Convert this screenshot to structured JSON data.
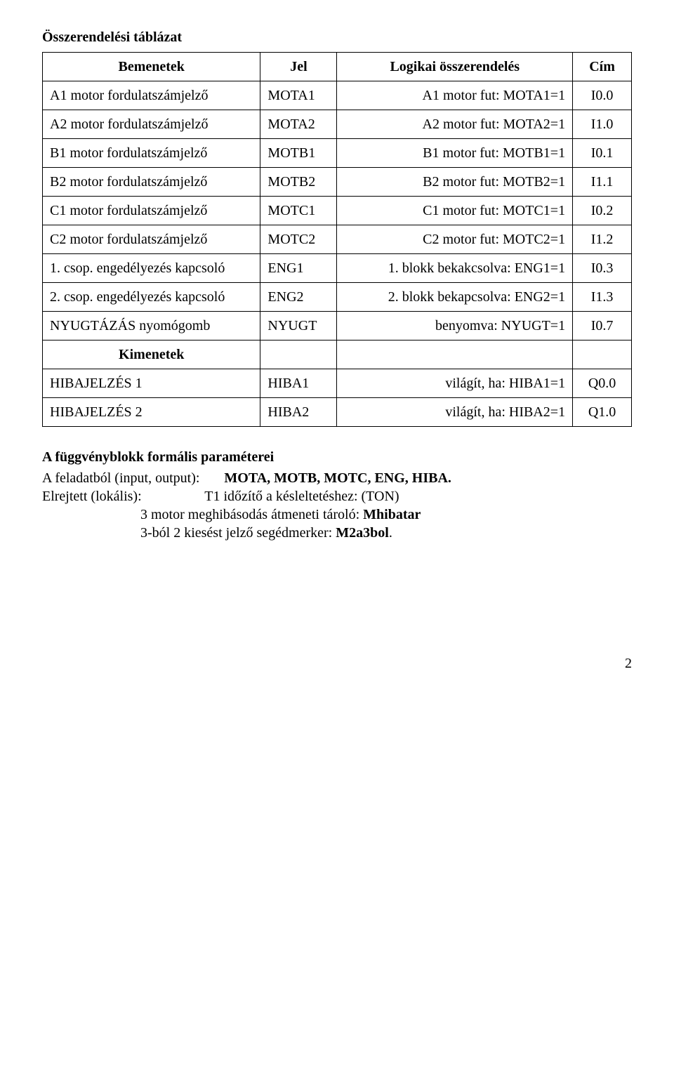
{
  "title": "Összerendelési táblázat",
  "table": {
    "headers": {
      "col1": "Bemenetek",
      "col2": "Jel",
      "col3": "Logikai összerendelés",
      "col4": "Cím"
    },
    "rows": [
      {
        "bemenet": "A1 motor fordulatszámjelző",
        "jel": "MOTA1",
        "logikai": "A1 motor fut:  MOTA1=1",
        "cim": "I0.0"
      },
      {
        "bemenet": "A2 motor fordulatszámjelző",
        "jel": "MOTA2",
        "logikai": "A2 motor fut:  MOTA2=1",
        "cim": "I1.0"
      },
      {
        "bemenet": "B1 motor fordulatszámjelző",
        "jel": "MOTB1",
        "logikai": "B1 motor fut:  MOTB1=1",
        "cim": "I0.1"
      },
      {
        "bemenet": "B2 motor fordulatszámjelző",
        "jel": "MOTB2",
        "logikai": "B2 motor fut:  MOTB2=1",
        "cim": "I1.1"
      },
      {
        "bemenet": "C1 motor fordulatszámjelző",
        "jel": "MOTC1",
        "logikai": "C1 motor fut:  MOTC1=1",
        "cim": "I0.2"
      },
      {
        "bemenet": "C2 motor fordulatszámjelző",
        "jel": "MOTC2",
        "logikai": "C2 motor fut:  MOTC2=1",
        "cim": "I1.2"
      },
      {
        "bemenet": "1. csop. engedélyezés kapcsoló",
        "jel": "ENG1",
        "logikai": "1. blokk bekakcsolva:  ENG1=1",
        "cim": "I0.3"
      },
      {
        "bemenet": "2. csop. engedélyezés kapcsoló",
        "jel": "ENG2",
        "logikai": "2. blokk bekapcsolva:  ENG2=1",
        "cim": "I1.3"
      },
      {
        "bemenet": "NYUGTÁZÁS nyomógomb",
        "jel": "NYUGT",
        "logikai": "benyomva:  NYUGT=1",
        "cim": "I0.7"
      }
    ],
    "kimenetek_header": "Kimenetek",
    "output_rows": [
      {
        "bemenet": "HIBAJELZÉS 1",
        "jel": "HIBA1",
        "logikai": "világít, ha:  HIBA1=1",
        "cim": "Q0.0"
      },
      {
        "bemenet": "HIBAJELZÉS 2",
        "jel": "HIBA2",
        "logikai": "világít, ha:  HIBA2=1",
        "cim": "Q1.0"
      }
    ]
  },
  "params": {
    "title": "A függvényblokk formális paraméterei",
    "line1_label": "A feladatból (input, output):",
    "line1_value": "MOTA, MOTB, MOTC, ENG, HIBA.",
    "line2_label": "Elrejtett (lokális):",
    "line2_value": "T1 időzítő a késleltetéshez: (TON)",
    "line3": "3 motor meghibásodás átmeneti tároló: ",
    "line3_bold": "Mhibatar",
    "line4": "3-ból 2 kiesést jelző segédmerker: ",
    "line4_bold": "M2a3bol",
    "period": "."
  },
  "page_number": "2"
}
